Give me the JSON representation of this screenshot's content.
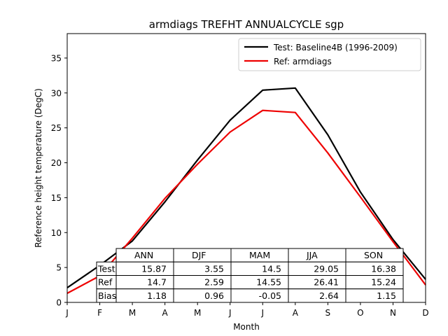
{
  "chart_data": {
    "type": "line",
    "title": "armdiags TREFHT ANNUALCYCLE sgp",
    "xlabel": "Month",
    "ylabel": "Reference height temperature (DegC)",
    "x_tick_labels": [
      "J",
      "F",
      "M",
      "A",
      "M",
      "J",
      "J",
      "A",
      "S",
      "O",
      "N",
      "D"
    ],
    "xlim": [
      0,
      11
    ],
    "ylim": [
      0,
      38.5
    ],
    "y_ticks": [
      0,
      5,
      10,
      15,
      20,
      25,
      30,
      35
    ],
    "legend_position": "top-right",
    "series": [
      {
        "name": "Test: Baseline4B (1996-2009)",
        "color": "#000000",
        "values": [
          2.1,
          5.3,
          8.8,
          14.4,
          20.4,
          26.1,
          30.4,
          30.7,
          24.0,
          15.8,
          9.0,
          3.3
        ]
      },
      {
        "name": "Ref: armdiags",
        "color": "#ee0000",
        "values": [
          1.3,
          3.8,
          9.2,
          14.9,
          19.8,
          24.4,
          27.5,
          27.2,
          21.4,
          15.1,
          8.7,
          2.5
        ]
      }
    ],
    "table": {
      "columns": [
        "ANN",
        "DJF",
        "MAM",
        "JJA",
        "SON"
      ],
      "rows": [
        {
          "label": "Test",
          "values": [
            "15.87",
            "3.55",
            "14.5",
            "29.05",
            "16.38"
          ]
        },
        {
          "label": "Ref",
          "values": [
            "14.7",
            "2.59",
            "14.55",
            "26.41",
            "15.24"
          ]
        },
        {
          "label": "Bias",
          "values": [
            "1.18",
            "0.96",
            "-0.05",
            "2.64",
            "1.15"
          ]
        }
      ]
    }
  }
}
